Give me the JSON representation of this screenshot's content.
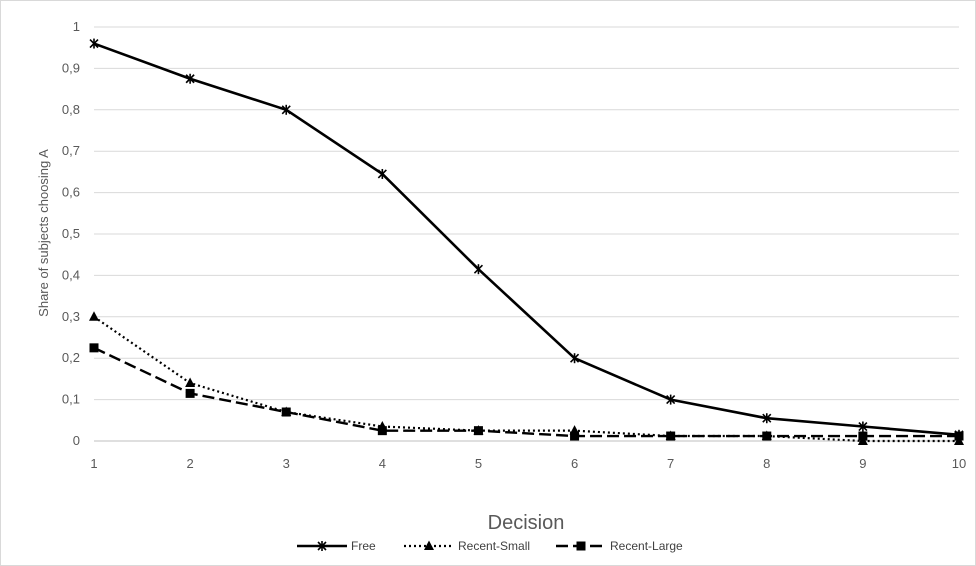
{
  "chart_data": {
    "type": "line",
    "xlabel": "Decision",
    "ylabel": "Share of subjects choosing A",
    "categories": [
      "1",
      "2",
      "3",
      "4",
      "5",
      "6",
      "7",
      "8",
      "9",
      "10"
    ],
    "ylim": [
      0,
      1
    ],
    "y_ticks": [
      "0",
      "0,1",
      "0,2",
      "0,3",
      "0,4",
      "0,5",
      "0,6",
      "0,7",
      "0,8",
      "0,9",
      "1"
    ],
    "grid": true,
    "legend_position": "bottom",
    "series": [
      {
        "name": "Free",
        "color": "#000000",
        "line_style": "solid",
        "marker": "star",
        "values": [
          0.96,
          0.875,
          0.8,
          0.645,
          0.415,
          0.2,
          0.1,
          0.055,
          0.035,
          0.015
        ]
      },
      {
        "name": "Recent-Small",
        "color": "#000000",
        "line_style": "dotted",
        "marker": "triangle",
        "values": [
          0.3,
          0.14,
          0.07,
          0.035,
          0.025,
          0.025,
          0.012,
          0.012,
          0.0,
          0.0
        ]
      },
      {
        "name": "Recent-Large",
        "color": "#000000",
        "line_style": "dashed",
        "marker": "square",
        "values": [
          0.225,
          0.115,
          0.07,
          0.025,
          0.025,
          0.012,
          0.012,
          0.012,
          0.012,
          0.012
        ]
      }
    ]
  }
}
